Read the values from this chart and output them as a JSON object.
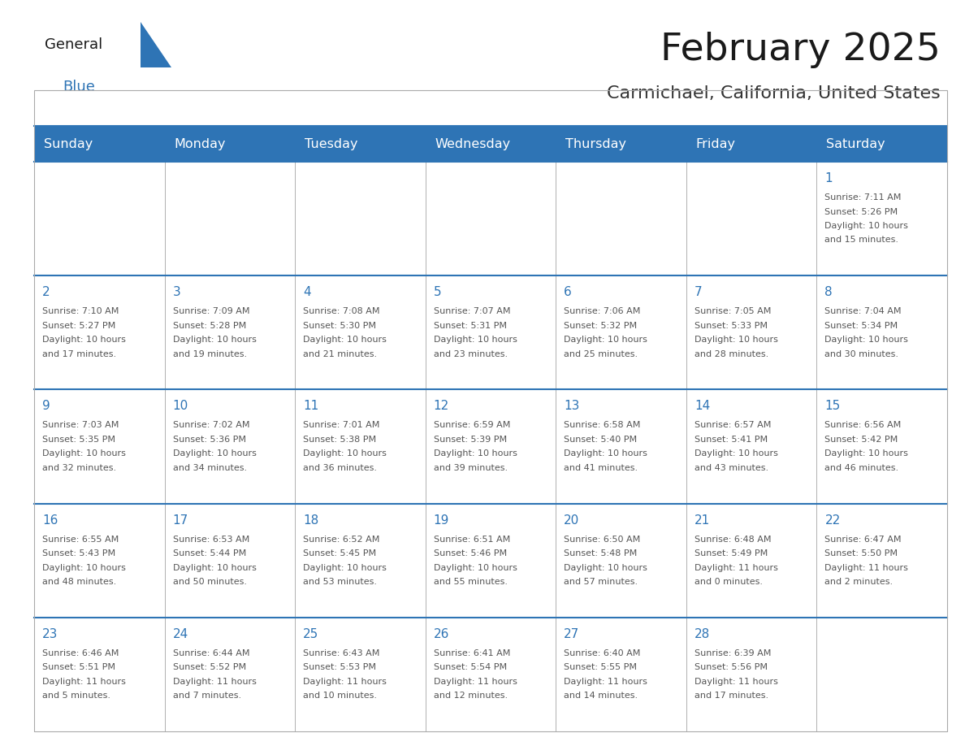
{
  "title": "February 2025",
  "subtitle": "Carmichael, California, United States",
  "days_of_week": [
    "Sunday",
    "Monday",
    "Tuesday",
    "Wednesday",
    "Thursday",
    "Friday",
    "Saturday"
  ],
  "header_bg": "#2E74B5",
  "header_text": "#FFFFFF",
  "cell_bg": "#FFFFFF",
  "cell_border": "#AAAAAA",
  "top_border": "#2E74B5",
  "day_number_color": "#2E74B5",
  "text_color": "#555555",
  "title_color": "#1a1a1a",
  "subtitle_color": "#333333",
  "logo_general_color": "#1a1a1a",
  "logo_blue_color": "#2E74B5",
  "calendar": [
    [
      null,
      null,
      null,
      null,
      null,
      null,
      {
        "day": 1,
        "sunrise": "7:11 AM",
        "sunset": "5:26 PM",
        "daylight": "10 hours and 15 minutes."
      }
    ],
    [
      {
        "day": 2,
        "sunrise": "7:10 AM",
        "sunset": "5:27 PM",
        "daylight": "10 hours and 17 minutes."
      },
      {
        "day": 3,
        "sunrise": "7:09 AM",
        "sunset": "5:28 PM",
        "daylight": "10 hours and 19 minutes."
      },
      {
        "day": 4,
        "sunrise": "7:08 AM",
        "sunset": "5:30 PM",
        "daylight": "10 hours and 21 minutes."
      },
      {
        "day": 5,
        "sunrise": "7:07 AM",
        "sunset": "5:31 PM",
        "daylight": "10 hours and 23 minutes."
      },
      {
        "day": 6,
        "sunrise": "7:06 AM",
        "sunset": "5:32 PM",
        "daylight": "10 hours and 25 minutes."
      },
      {
        "day": 7,
        "sunrise": "7:05 AM",
        "sunset": "5:33 PM",
        "daylight": "10 hours and 28 minutes."
      },
      {
        "day": 8,
        "sunrise": "7:04 AM",
        "sunset": "5:34 PM",
        "daylight": "10 hours and 30 minutes."
      }
    ],
    [
      {
        "day": 9,
        "sunrise": "7:03 AM",
        "sunset": "5:35 PM",
        "daylight": "10 hours and 32 minutes."
      },
      {
        "day": 10,
        "sunrise": "7:02 AM",
        "sunset": "5:36 PM",
        "daylight": "10 hours and 34 minutes."
      },
      {
        "day": 11,
        "sunrise": "7:01 AM",
        "sunset": "5:38 PM",
        "daylight": "10 hours and 36 minutes."
      },
      {
        "day": 12,
        "sunrise": "6:59 AM",
        "sunset": "5:39 PM",
        "daylight": "10 hours and 39 minutes."
      },
      {
        "day": 13,
        "sunrise": "6:58 AM",
        "sunset": "5:40 PM",
        "daylight": "10 hours and 41 minutes."
      },
      {
        "day": 14,
        "sunrise": "6:57 AM",
        "sunset": "5:41 PM",
        "daylight": "10 hours and 43 minutes."
      },
      {
        "day": 15,
        "sunrise": "6:56 AM",
        "sunset": "5:42 PM",
        "daylight": "10 hours and 46 minutes."
      }
    ],
    [
      {
        "day": 16,
        "sunrise": "6:55 AM",
        "sunset": "5:43 PM",
        "daylight": "10 hours and 48 minutes."
      },
      {
        "day": 17,
        "sunrise": "6:53 AM",
        "sunset": "5:44 PM",
        "daylight": "10 hours and 50 minutes."
      },
      {
        "day": 18,
        "sunrise": "6:52 AM",
        "sunset": "5:45 PM",
        "daylight": "10 hours and 53 minutes."
      },
      {
        "day": 19,
        "sunrise": "6:51 AM",
        "sunset": "5:46 PM",
        "daylight": "10 hours and 55 minutes."
      },
      {
        "day": 20,
        "sunrise": "6:50 AM",
        "sunset": "5:48 PM",
        "daylight": "10 hours and 57 minutes."
      },
      {
        "day": 21,
        "sunrise": "6:48 AM",
        "sunset": "5:49 PM",
        "daylight": "11 hours and 0 minutes."
      },
      {
        "day": 22,
        "sunrise": "6:47 AM",
        "sunset": "5:50 PM",
        "daylight": "11 hours and 2 minutes."
      }
    ],
    [
      {
        "day": 23,
        "sunrise": "6:46 AM",
        "sunset": "5:51 PM",
        "daylight": "11 hours and 5 minutes."
      },
      {
        "day": 24,
        "sunrise": "6:44 AM",
        "sunset": "5:52 PM",
        "daylight": "11 hours and 7 minutes."
      },
      {
        "day": 25,
        "sunrise": "6:43 AM",
        "sunset": "5:53 PM",
        "daylight": "11 hours and 10 minutes."
      },
      {
        "day": 26,
        "sunrise": "6:41 AM",
        "sunset": "5:54 PM",
        "daylight": "11 hours and 12 minutes."
      },
      {
        "day": 27,
        "sunrise": "6:40 AM",
        "sunset": "5:55 PM",
        "daylight": "11 hours and 14 minutes."
      },
      {
        "day": 28,
        "sunrise": "6:39 AM",
        "sunset": "5:56 PM",
        "daylight": "11 hours and 17 minutes."
      },
      null
    ]
  ],
  "figwidth": 11.88,
  "figheight": 9.18,
  "dpi": 100
}
